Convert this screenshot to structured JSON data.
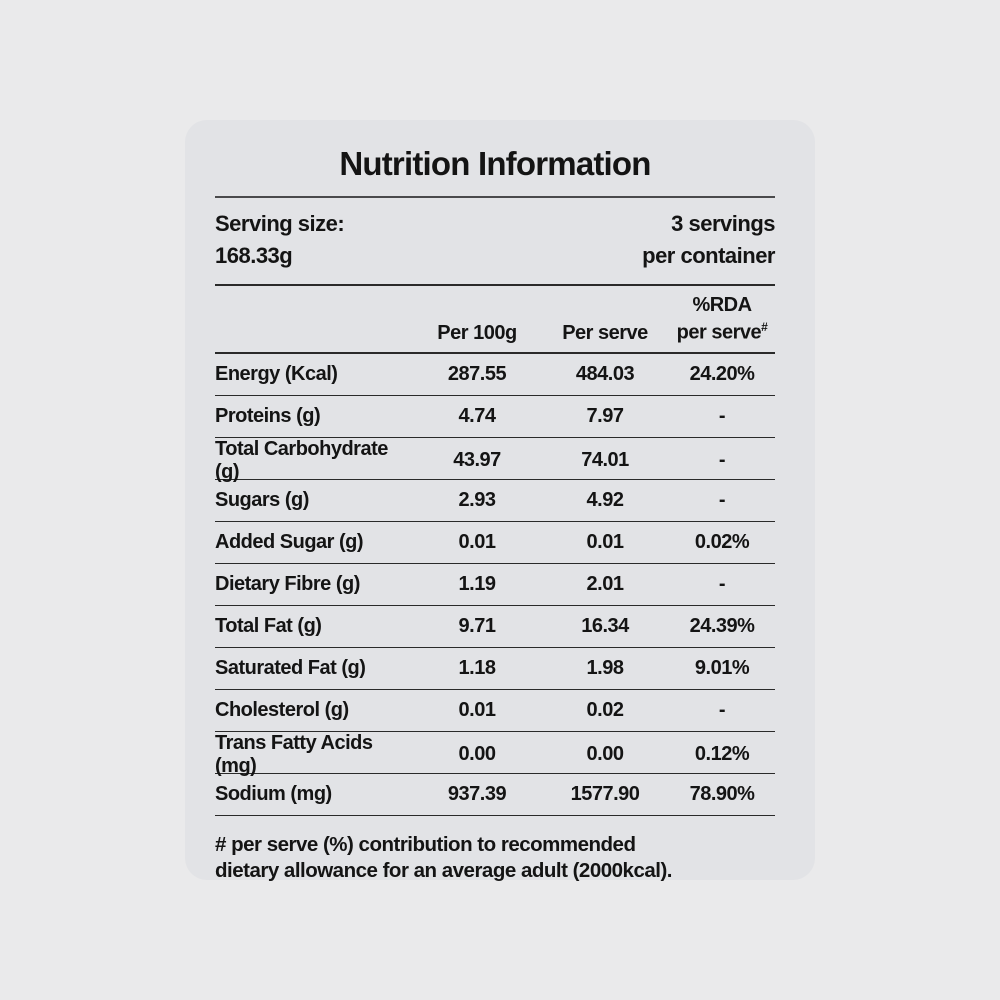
{
  "page": {
    "background_color": "#eaeaeb",
    "card_background_color": "#e2e3e6",
    "text_color": "#141414"
  },
  "label": {
    "title": "Nutrition Information",
    "serving": {
      "size_label": "Serving size:",
      "size_value": "168.33g",
      "servings_line1": "3 servings",
      "servings_line2": "per container"
    },
    "columns": {
      "per_100g": "Per 100g",
      "per_serve": "Per serve",
      "rda_line1": "%RDA",
      "rda_line2": "per serve",
      "rda_superscript": "#"
    },
    "rows": [
      {
        "name": "Energy (Kcal)",
        "per_100g": "287.55",
        "per_serve": "484.03",
        "rda_per_serve": "24.20%"
      },
      {
        "name": "Proteins (g)",
        "per_100g": "4.74",
        "per_serve": "7.97",
        "rda_per_serve": "-"
      },
      {
        "name": "Total Carbohydrate (g)",
        "per_100g": "43.97",
        "per_serve": "74.01",
        "rda_per_serve": "-"
      },
      {
        "name": "Sugars (g)",
        "per_100g": "2.93",
        "per_serve": "4.92",
        "rda_per_serve": "-"
      },
      {
        "name": "Added Sugar (g)",
        "per_100g": "0.01",
        "per_serve": "0.01",
        "rda_per_serve": "0.02%"
      },
      {
        "name": "Dietary Fibre (g)",
        "per_100g": "1.19",
        "per_serve": "2.01",
        "rda_per_serve": "-"
      },
      {
        "name": "Total Fat (g)",
        "per_100g": "9.71",
        "per_serve": "16.34",
        "rda_per_serve": "24.39%"
      },
      {
        "name": "Saturated Fat (g)",
        "per_100g": "1.18",
        "per_serve": "1.98",
        "rda_per_serve": "9.01%"
      },
      {
        "name": "Cholesterol (g)",
        "per_100g": "0.01",
        "per_serve": "0.02",
        "rda_per_serve": "-"
      },
      {
        "name": "Trans Fatty Acids (mg)",
        "per_100g": "0.00",
        "per_serve": "0.00",
        "rda_per_serve": "0.12%"
      },
      {
        "name": "Sodium (mg)",
        "per_100g": "937.39",
        "per_serve": "1577.90",
        "rda_per_serve": "78.90%"
      }
    ],
    "footnote_line1": "# per serve (%) contribution to recommended",
    "footnote_line2": "dietary allowance for an average adult (2000kcal)."
  }
}
